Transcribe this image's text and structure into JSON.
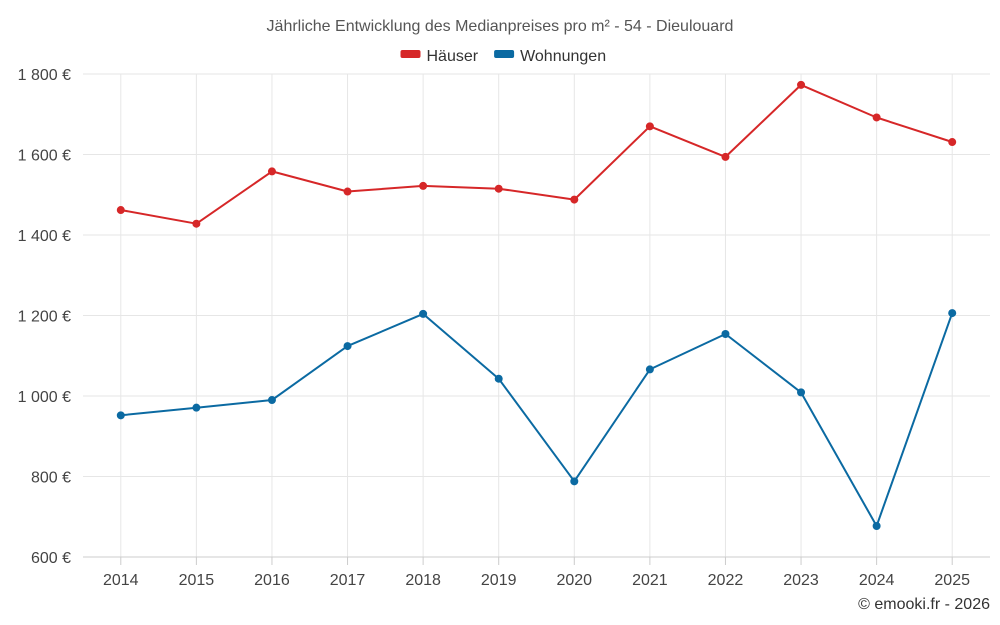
{
  "chart_data": {
    "type": "line",
    "title": "Jährliche Entwicklung des Medianpreises pro m² - 54 - Dieulouard",
    "categories": [
      "2014",
      "2015",
      "2016",
      "2017",
      "2018",
      "2019",
      "2020",
      "2021",
      "2022",
      "2023",
      "2024",
      "2025"
    ],
    "series": [
      {
        "name": "Häuser",
        "color": "#d62728",
        "values": [
          1462,
          1428,
          1558,
          1508,
          1522,
          1515,
          1488,
          1670,
          1594,
          1773,
          1692,
          1631
        ]
      },
      {
        "name": "Wohnungen",
        "color": "#0b6aa2",
        "values": [
          952,
          971,
          990,
          1124,
          1204,
          1043,
          788,
          1066,
          1154,
          1009,
          677,
          1206
        ]
      }
    ],
    "ylim": [
      600,
      1800
    ],
    "yticks": [
      600,
      800,
      1000,
      1200,
      1400,
      1600,
      1800
    ],
    "ytick_labels": [
      "600 €",
      "800 €",
      "1 000 €",
      "1 200 €",
      "1 400 €",
      "1 600 €",
      "1 800 €"
    ],
    "xlabel": "",
    "ylabel": "",
    "legend_position": "top-center",
    "grid": true
  },
  "credit": "© emooki.fr - 2026"
}
